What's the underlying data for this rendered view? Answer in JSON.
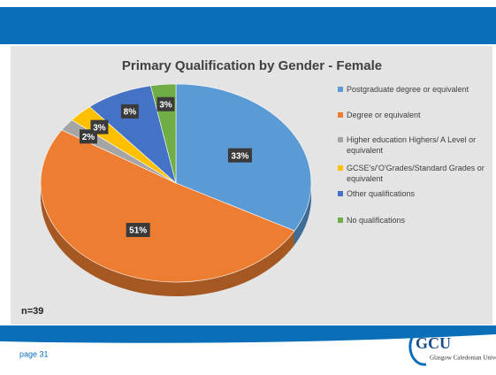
{
  "chart_data": {
    "type": "pie",
    "title": "Primary Qualification by Gender - Female",
    "categories": [
      "Postgraduate degree or equivalent",
      "Degree or equivalent",
      "Higher education Highers/ A Level or equivalent",
      "GCSE's/'O'Grades/Standard Grades or equivalent",
      "Other qualifications",
      "No qualifications"
    ],
    "values": [
      33,
      51,
      2,
      3,
      8,
      3
    ],
    "value_labels": [
      "33%",
      "51%",
      "2%",
      "3%",
      "8%",
      "3%"
    ],
    "colors": [
      "#5b9bd5",
      "#ed7d31",
      "#a5a5a5",
      "#ffc000",
      "#4472c4",
      "#70ad47"
    ],
    "legend": "right",
    "annotation": "n=39"
  },
  "footer": {
    "page": "page 31",
    "logo": "GCU",
    "logo_text": "Glasgow Caledonian University"
  }
}
